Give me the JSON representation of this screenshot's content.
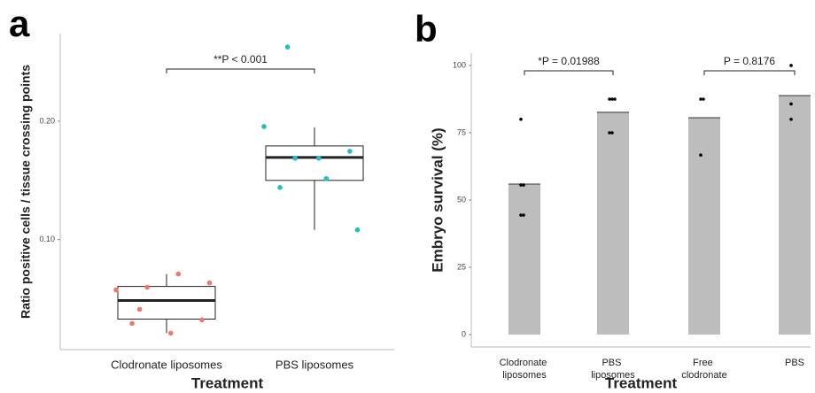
{
  "panels": [
    "a",
    "b"
  ],
  "chart_data": [
    {
      "type": "box",
      "ylabel": "Ratio positive cells / tissue crossing points",
      "xlabel": "Treatment",
      "categories": [
        "Clodronate liposomes",
        "PBS liposomes"
      ],
      "ylim": [
        0.007,
        0.274
      ],
      "yticks": [
        {
          "value": 0.1,
          "label": "0.10"
        },
        {
          "value": 0.2,
          "label": "0.20"
        }
      ],
      "boxes": [
        {
          "color": "#f0776d",
          "whisker_low": 0.0209,
          "q1": 0.0328,
          "median": 0.0485,
          "q3": 0.0604,
          "whisker_high": 0.0709,
          "points": [
            0.0575,
            0.0597,
            0.0709,
            0.0634,
            0.041,
            0.0209,
            0.0321,
            0.0291
          ]
        },
        {
          "color": "#1fbfc4",
          "whisker_low": 0.1082,
          "q1": 0.15,
          "median": 0.1694,
          "q3": 0.1791,
          "whisker_high": 0.1948,
          "points": [
            0.1955,
            0.1687,
            0.1515,
            0.1082,
            0.2627,
            0.1687,
            0.1746,
            0.144
          ]
        }
      ],
      "annotations": [
        {
          "text": "**P < 0.001",
          "between": [
            "Clodronate liposomes",
            "PBS liposomes"
          ]
        }
      ]
    },
    {
      "type": "bar",
      "ylabel": "Embryo survival (%)",
      "xlabel": "Treatment",
      "categories": [
        "Clodronate liposomes",
        "PBS liposomes",
        "Free clodronate",
        "PBS"
      ],
      "values": [
        55.9,
        82.6,
        80.6,
        88.8
      ],
      "color": "#bdbdbd",
      "point_color": "#000000",
      "points": [
        [
          80,
          55.6,
          55.6,
          44.4,
          44.4
        ],
        [
          87.5,
          87.5,
          87.5,
          75,
          75
        ],
        [
          87.5,
          87.5,
          66.7
        ],
        [
          100,
          85.7,
          80
        ]
      ],
      "ylim": [
        -4.6,
        104.6
      ],
      "yticks": [
        0,
        25,
        50,
        75,
        100
      ],
      "annotations": [
        {
          "text": "*P = 0.01988",
          "between": [
            "Clodronate liposomes",
            "PBS liposomes"
          ]
        },
        {
          "text": "P = 0.8176",
          "between": [
            "Free clodronate",
            "PBS"
          ]
        }
      ]
    }
  ]
}
